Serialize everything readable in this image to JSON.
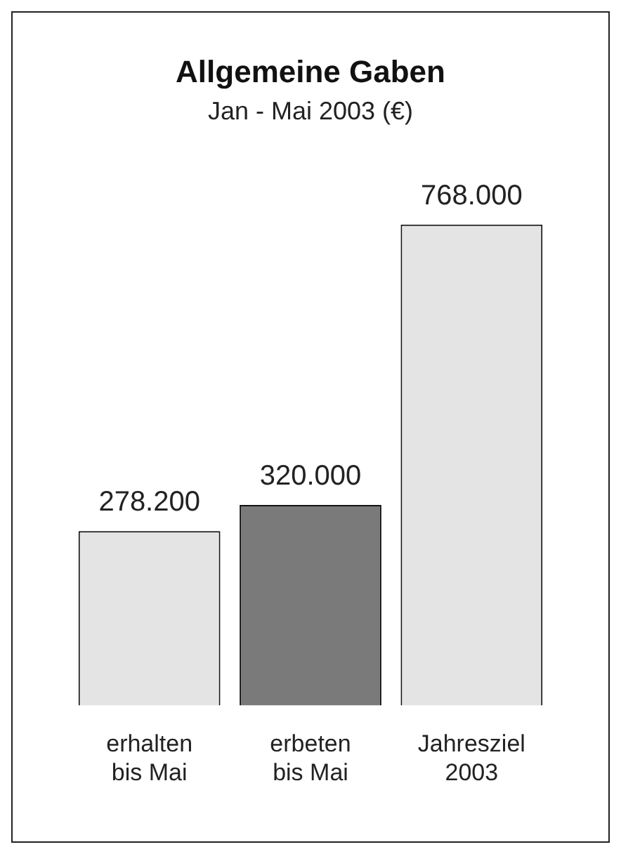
{
  "chart_data": {
    "type": "bar",
    "title": "Allgemeine Gaben",
    "subtitle": "Jan - Mai 2003 (€)",
    "categories": [
      "erhalten\nbis Mai",
      "erbeten\nbis Mai",
      "Jahresziel\n2003"
    ],
    "values": [
      278200,
      320000,
      768000
    ],
    "colors": [
      "#e4e4e4",
      "#7a7a7a",
      "#e4e4e4"
    ],
    "value_labels": [
      "278.200",
      "320.000",
      "768.000"
    ],
    "grid": false,
    "legend": false
  }
}
